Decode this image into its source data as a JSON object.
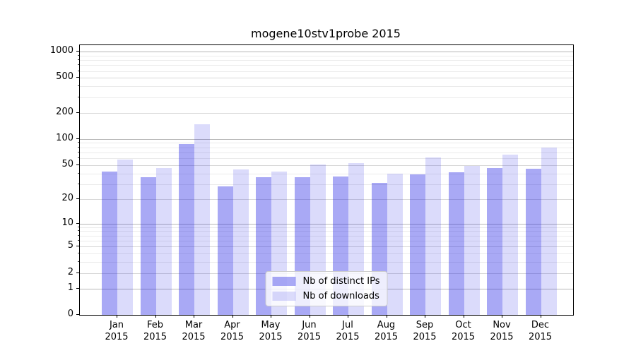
{
  "title": "mogene10stv1probe 2015",
  "chart_data": {
    "type": "bar",
    "title": "mogene10stv1probe 2015",
    "categories": [
      "Jan 2015",
      "Feb 2015",
      "Mar 2015",
      "Apr 2015",
      "May 2015",
      "Jun 2015",
      "Jul 2015",
      "Aug 2015",
      "Sep 2015",
      "Oct 2015",
      "Nov 2015",
      "Dec 2015"
    ],
    "series": [
      {
        "name": "Nb of distinct IPs",
        "color": "rgba(28,28,228,0.38)",
        "values": [
          42,
          36,
          88,
          28,
          36,
          36,
          37,
          31,
          39,
          41,
          46,
          45
        ]
      },
      {
        "name": "Nb of downloads",
        "color": "rgba(28,28,228,0.16)",
        "values": [
          58,
          46,
          148,
          44,
          42,
          51,
          53,
          40,
          61,
          49,
          66,
          80
        ]
      }
    ],
    "xlabel": "",
    "ylabel": "",
    "yscale": "log1p",
    "ylim": [
      0,
      1180
    ],
    "y_ticks": [
      0,
      1,
      2,
      5,
      10,
      20,
      50,
      100,
      200,
      500,
      1000
    ],
    "y_minor_ticks": [
      3,
      4,
      6,
      7,
      8,
      9,
      30,
      40,
      60,
      70,
      80,
      90,
      300,
      400,
      600,
      700,
      800,
      900
    ],
    "grid": true,
    "legend_position": "lower center"
  },
  "colors": {
    "grid_decade": "#b6b6b6",
    "grid_major": "#d7d7d7",
    "grid_minor": "#ebebeb",
    "axis": "#000000",
    "background": "#ffffff",
    "legend_border": "#cccccc"
  }
}
